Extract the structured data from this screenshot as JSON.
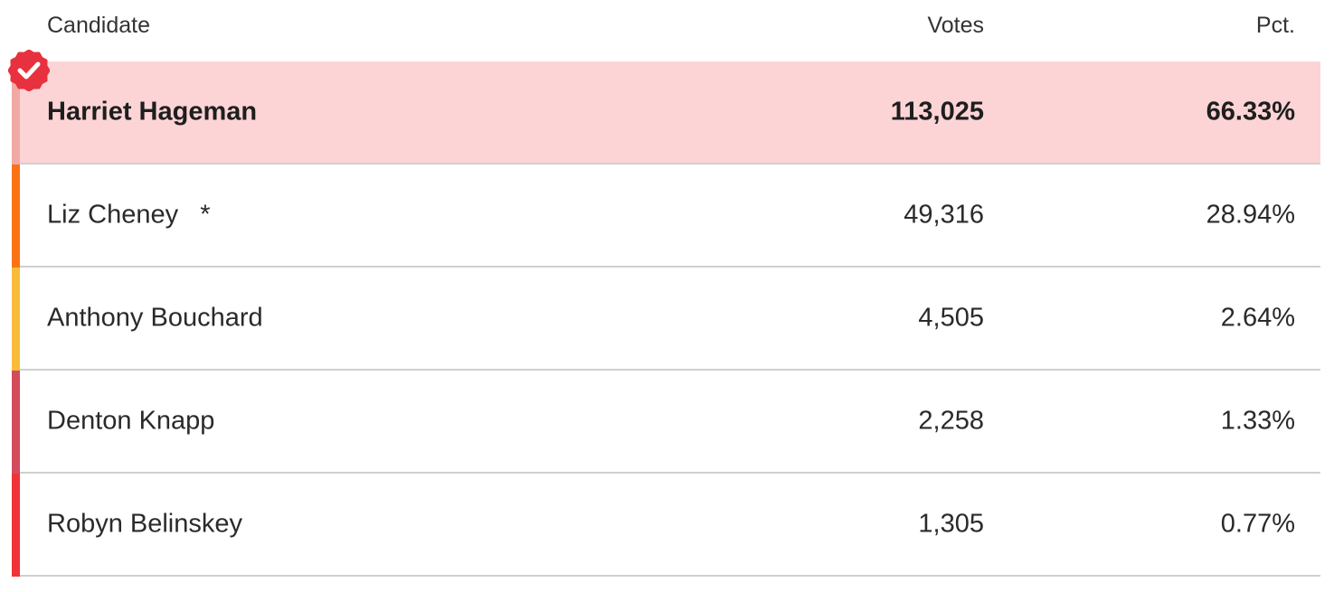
{
  "header": {
    "candidate": "Candidate",
    "votes": "Votes",
    "pct": "Pct."
  },
  "winner_highlight_color": "#fcd4d6",
  "winner_badge_color": "#e8313e",
  "rows": [
    {
      "name": "Harriet Hageman",
      "votes": "113,025",
      "pct": "66.33%",
      "color": "#f1a9a5",
      "winner": true,
      "incumbent_marker": ""
    },
    {
      "name": "Liz Cheney",
      "votes": "49,316",
      "pct": "28.94%",
      "color": "#f97316",
      "winner": false,
      "incumbent_marker": "*"
    },
    {
      "name": "Anthony Bouchard",
      "votes": "4,505",
      "pct": "2.64%",
      "color": "#f9bc3a",
      "winner": false,
      "incumbent_marker": ""
    },
    {
      "name": "Denton Knapp",
      "votes": "2,258",
      "pct": "1.33%",
      "color": "#d24c5c",
      "winner": false,
      "incumbent_marker": ""
    },
    {
      "name": "Robyn Belinskey",
      "votes": "1,305",
      "pct": "0.77%",
      "color": "#ee3438",
      "winner": false,
      "incumbent_marker": ""
    }
  ]
}
